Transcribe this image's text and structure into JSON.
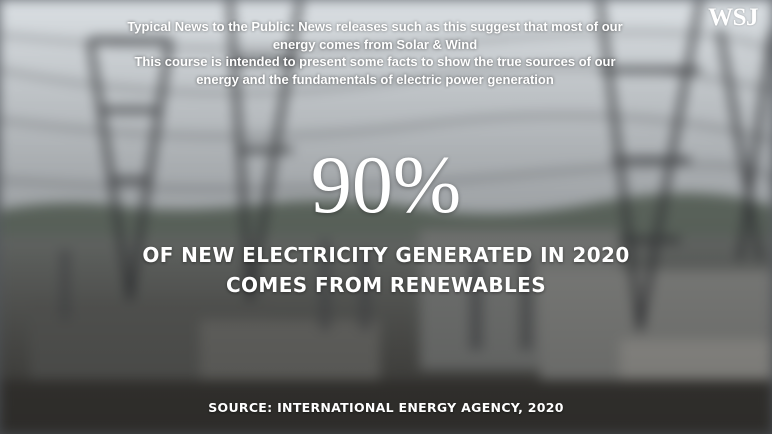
{
  "logo": "WSJ",
  "intro_lines": [
    "Typical News to the Public: News releases such as this suggest that most of our",
    "energy comes from Solar & Wind",
    "This course is intended to present some facts to show the true sources of our",
    "energy and the fundamentals of electric power generation"
  ],
  "big_figure": "90%",
  "headline_lines": [
    "OF NEW ELECTRICITY GENERATED IN 2020",
    "COMES FROM RENEWABLES"
  ],
  "source": "SOURCE: INTERNATIONAL ENERGY AGENCY, 2020",
  "colors": {
    "text": "#ffffff",
    "sky": "#d9dee2",
    "ground": "#5d5c58"
  }
}
